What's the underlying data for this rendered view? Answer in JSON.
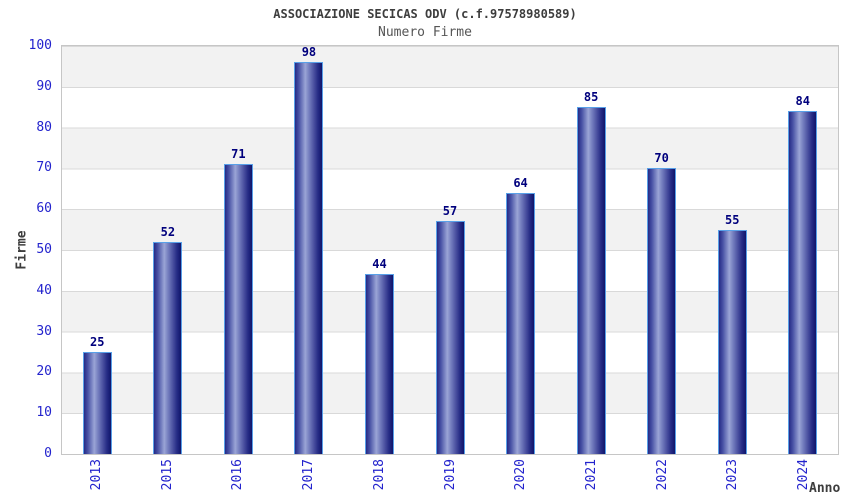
{
  "chart_data": {
    "type": "bar",
    "title": "ASSOCIAZIONE SECICAS ODV (c.f.97578980589)",
    "subtitle": "Numero Firme",
    "xlabel": "Anno",
    "ylabel": "Firme",
    "categories": [
      "2013",
      "2015",
      "2016",
      "2017",
      "2018",
      "2019",
      "2020",
      "2021",
      "2022",
      "2023",
      "2024"
    ],
    "values": [
      25,
      52,
      71,
      98,
      44,
      57,
      64,
      85,
      70,
      55,
      84
    ],
    "ylim": [
      0,
      100
    ],
    "ytick_step": 10,
    "yticks": [
      0,
      10,
      20,
      30,
      40,
      50,
      60,
      70,
      80,
      90,
      100
    ],
    "grid": true,
    "band_alternating": true,
    "legend": "none",
    "x_tick_rotation_deg": 90
  },
  "colors": {
    "tick_label_blue": "#2323cd",
    "value_label_navy": "#00007d",
    "bar_border_lightblue": "#58a0e8",
    "bar_gradient_dark": "#10156b",
    "bar_gradient_mid": "#9aa4d6",
    "band_gray": "#f2f2f2",
    "gridline": "#d9d9d9",
    "plot_border": "#c6c6c6",
    "title_gray": "#3d3d3d",
    "subtitle_gray": "#565656"
  }
}
